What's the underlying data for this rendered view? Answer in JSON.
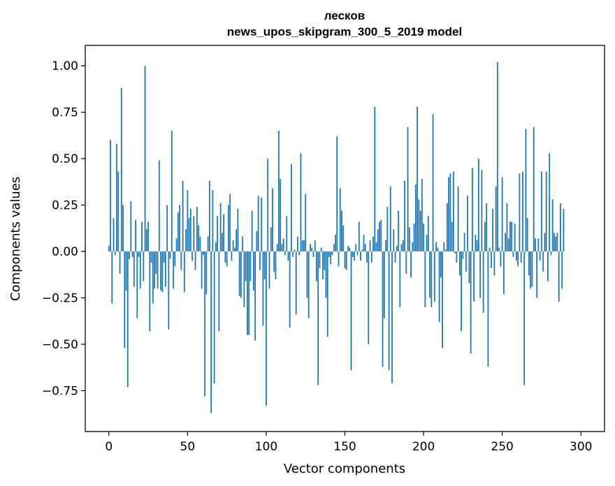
{
  "chart_data": {
    "type": "bar",
    "title": "лесков",
    "subtitle": "news_upos_skipgram_300_5_2019 model",
    "xlabel": "Vector components",
    "ylabel": "Components values",
    "xlim": [
      -15,
      315
    ],
    "ylim": [
      -0.97,
      1.11
    ],
    "xticks": [
      0,
      50,
      100,
      150,
      200,
      250,
      300
    ],
    "xtick_labels": [
      "0",
      "50",
      "100",
      "150",
      "200",
      "250",
      "300"
    ],
    "yticks": [
      -0.75,
      -0.5,
      -0.25,
      0.0,
      0.25,
      0.5,
      0.75,
      1.0
    ],
    "ytick_labels": [
      "−0.75",
      "−0.50",
      "−0.25",
      "0.00",
      "0.25",
      "0.50",
      "0.75",
      "1.00"
    ],
    "grid": false,
    "bar_color": "#1f77b4",
    "x": "0..299",
    "values": [
      0.03,
      0.6,
      -0.28,
      0.18,
      -0.02,
      0.58,
      0.43,
      -0.12,
      0.88,
      0.25,
      -0.52,
      -0.21,
      -0.73,
      -0.04,
      0.27,
      -0.03,
      -0.19,
      0.17,
      -0.36,
      -0.03,
      -0.2,
      0.16,
      -0.16,
      1.0,
      0.12,
      0.16,
      -0.43,
      -0.06,
      -0.28,
      -0.2,
      -0.12,
      -0.2,
      0.49,
      -0.21,
      -0.22,
      -0.06,
      -0.19,
      0.25,
      -0.42,
      -0.04,
      0.65,
      -0.2,
      -0.08,
      0.07,
      0.21,
      0.25,
      -0.1,
      0.38,
      -0.22,
      0.12,
      0.33,
      0.18,
      0.23,
      -0.05,
      0.19,
      -0.1,
      0.24,
      0.14,
      0.08,
      -0.2,
      -0.02,
      -0.78,
      -0.23,
      0.08,
      0.38,
      -0.87,
      0.33,
      -0.71,
      0.05,
      0.19,
      -0.43,
      0.26,
      0.1,
      0.2,
      -0.06,
      -0.08,
      0.25,
      0.31,
      -0.05,
      0.06,
      0.02,
      0.12,
      0.23,
      -0.24,
      -0.25,
      0.08,
      -0.3,
      -0.16,
      -0.45,
      -0.45,
      -0.16,
      0.22,
      -0.21,
      -0.48,
      0.11,
      0.3,
      -0.1,
      0.29,
      -0.4,
      -0.15,
      -0.83,
      0.5,
      -0.2,
      0.13,
      0.34,
      -0.11,
      -0.15,
      0.04,
      0.65,
      0.39,
      0.04,
      0.07,
      -0.02,
      0.19,
      -0.05,
      -0.41,
      0.47,
      -0.03,
      0.01,
      -0.34,
      0.08,
      -0.02,
      0.53,
      0.06,
      0.06,
      0.31,
      -0.25,
      -0.36,
      0.04,
      0.02,
      -0.03,
      0.06,
      -0.16,
      -0.72,
      -0.09,
      0.02,
      -0.15,
      -0.1,
      -0.25,
      -0.46,
      -0.03,
      -0.07,
      -0.02,
      0.04,
      0.09,
      0.62,
      -0.08,
      0.34,
      0.22,
      0.14,
      -0.09,
      -0.1,
      0.03,
      0.02,
      -0.64,
      -0.03,
      -0.05,
      0.04,
      -0.02,
      0.16,
      -0.05,
      0.01,
      0.09,
      0.04,
      -0.06,
      -0.5,
      0.06,
      -0.06,
      0.08,
      0.78,
      0.05,
      0.12,
      0.16,
      0.17,
      -0.62,
      -0.36,
      0.06,
      0.24,
      -0.64,
      0.35,
      -0.71,
      0.12,
      -0.06,
      0.03,
      0.22,
      -0.3,
      0.04,
      0.06,
      0.38,
      -0.12,
      0.67,
      0.13,
      -0.14,
      0.05,
      0.15,
      0.36,
      0.78,
      0.28,
      0.22,
      0.39,
      0.15,
      -0.3,
      0.09,
      0.19,
      -0.25,
      -0.3,
      0.74,
      -0.27,
      0.05,
      0.02,
      -0.38,
      -0.14,
      -0.52,
      0.05,
      0.01,
      0.26,
      0.4,
      0.42,
      0.16,
      0.43,
      -0.01,
      -0.06,
      0.35,
      -0.13,
      -0.43,
      -0.04,
      0.1,
      -0.11,
      0.3,
      -0.17,
      -0.55,
      0.45,
      -0.27,
      0.09,
      0.06,
      0.5,
      -0.25,
      0.44,
      -0.33,
      0.16,
      0.26,
      -0.62,
      0.02,
      -0.09,
      0.23,
      -0.13,
      0.35,
      1.02,
      0.02,
      -0.08,
      0.4,
      -0.23,
      0.1,
      0.26,
      0.07,
      0.16,
      0.16,
      -0.03,
      0.15,
      -0.05,
      -0.08,
      0.42,
      -0.06,
      0.43,
      -0.72,
      0.66,
      0.18,
      -0.13,
      -0.2,
      -0.19,
      0.67,
      0.07,
      -0.25,
      0.07,
      -0.05,
      0.43,
      -0.11,
      0.1,
      0.43,
      -0.16,
      0.53,
      -0.02,
      0.28,
      0.1,
      0.08,
      0.1,
      -0.27,
      0.26,
      -0.2,
      0.23
    ]
  }
}
